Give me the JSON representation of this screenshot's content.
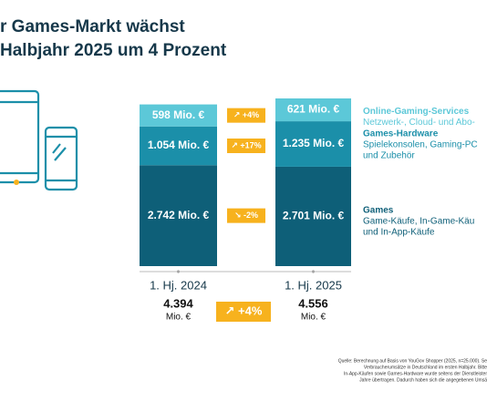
{
  "chart_data": {
    "type": "stacked-bar",
    "title_lines": [
      "r Games-Markt wächst",
      "Halbjahr 2025 um 4 Prozent"
    ],
    "categories": [
      "1. Hj. 2024",
      "1. Hj. 2025"
    ],
    "series": [
      {
        "name": "Games",
        "description": [
          "Game-Käufe, In-Game-Käu",
          "und In-App-Käufe"
        ],
        "color": "#0e5f78",
        "values": [
          2742,
          2701
        ],
        "value_labels": [
          "2.742 Mio. €",
          "2.701 Mio. €"
        ],
        "change": "↘ -2%"
      },
      {
        "name": "Games-Hardware",
        "description": [
          "Spielekonsolen, Gaming-PC",
          "und Zubehör"
        ],
        "color": "#1b8fa9",
        "values": [
          1054,
          1235
        ],
        "value_labels": [
          "1.054 Mio. €",
          "1.235 Mio. €"
        ],
        "change": "↗ +17%"
      },
      {
        "name": "Online-Gaming-Services",
        "description": [
          "Netzwerk-, Cloud- und Abo-"
        ],
        "color": "#5cc8d8",
        "values": [
          598,
          621
        ],
        "value_labels": [
          "598 Mio. €",
          "621 Mio. €"
        ],
        "change": "↗ +4%"
      }
    ],
    "totals": {
      "values": [
        4394,
        4556
      ],
      "value_labels": [
        "4.394",
        "4.556"
      ],
      "unit": "Mio. €",
      "change": "↗ +4%"
    },
    "badge_color": "#f7b21e",
    "footnote": [
      "Quelle: Berechnung auf Basis von YouGov Shopper (2025, n=25.000). Se",
      "Verbraucherumsätze in Deutschland im ersten Halbjahr. Bitte",
      "In-App-Käufen sowie Games-Hardware wurde seitens der Dienstleister",
      "Jahre übertragen. Dadurch haben sich die angegebenen Umsä"
    ]
  }
}
